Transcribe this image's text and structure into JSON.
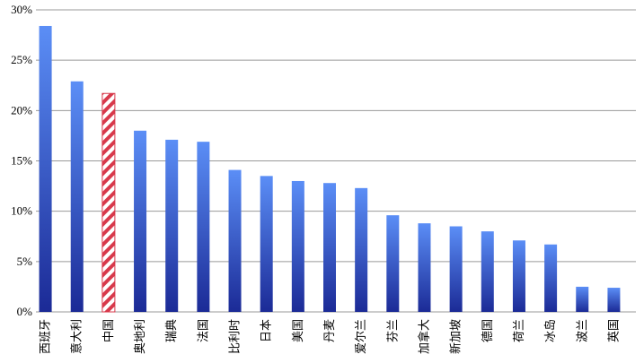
{
  "chart_data": {
    "type": "bar",
    "categories": [
      "西班牙",
      "意大利",
      "中国",
      "奥地利",
      "瑞典",
      "法国",
      "比利时",
      "日本",
      "美国",
      "丹麦",
      "爱尔兰",
      "芬兰",
      "加拿大",
      "新加坡",
      "德国",
      "荷兰",
      "冰岛",
      "波兰",
      "英国"
    ],
    "values": [
      28.4,
      22.9,
      21.7,
      18.0,
      17.1,
      16.9,
      14.1,
      13.5,
      13.0,
      12.8,
      12.3,
      9.6,
      8.8,
      8.5,
      8.0,
      7.1,
      6.7,
      2.5,
      2.4
    ],
    "color": "#5b8ef6",
    "highlight_color": "#d8394b",
    "hatch_index": 2,
    "ylim": [
      0,
      30
    ],
    "yticks": [
      {
        "value": 0,
        "label": "0%"
      },
      {
        "value": 5,
        "label": "5%"
      },
      {
        "value": 10,
        "label": "10%"
      },
      {
        "value": 15,
        "label": "15%"
      },
      {
        "value": 20,
        "label": "20%"
      },
      {
        "value": 25,
        "label": "25%"
      },
      {
        "value": 30,
        "label": "30%"
      }
    ],
    "grid": true
  }
}
